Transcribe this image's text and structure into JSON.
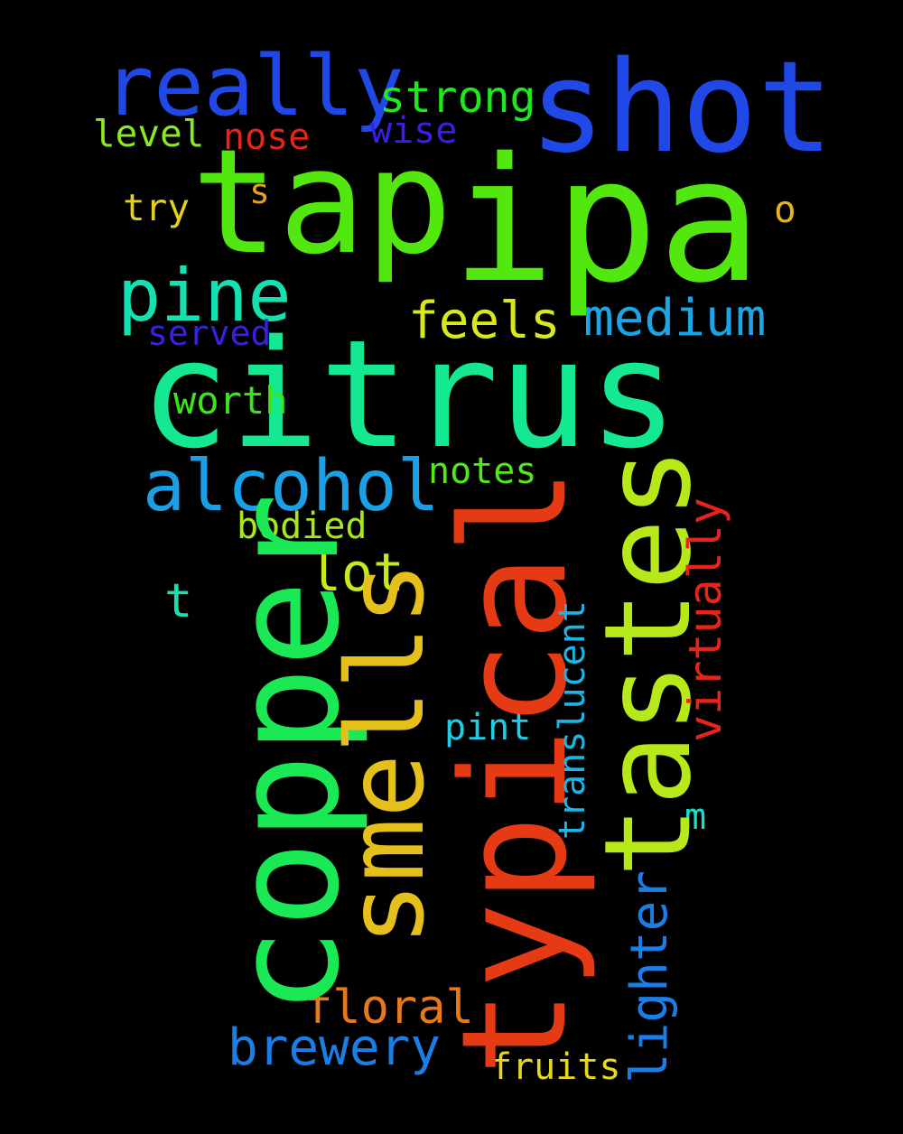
{
  "words": {
    "ipa": {
      "text": "ipa",
      "color": "#52e80f"
    },
    "tap": {
      "text": "tap",
      "color": "#52e80f"
    },
    "shot": {
      "text": "shot",
      "color": "#1f48e6"
    },
    "really": {
      "text": "really",
      "color": "#1f48e6"
    },
    "strong": {
      "text": "strong",
      "color": "#1fe81f"
    },
    "wise": {
      "text": "wise",
      "color": "#3a1fe6"
    },
    "level": {
      "text": "level",
      "color": "#8ce81f"
    },
    "nose": {
      "text": "nose",
      "color": "#e6241a"
    },
    "s": {
      "text": "s",
      "color": "#e6a21a"
    },
    "try": {
      "text": "try",
      "color": "#e6d01a"
    },
    "o": {
      "text": "o",
      "color": "#e6b41a"
    },
    "pine": {
      "text": "pine",
      "color": "#14e0b0"
    },
    "feels": {
      "text": "feels",
      "color": "#d8e81a"
    },
    "medium": {
      "text": "medium",
      "color": "#1aa6e6"
    },
    "served": {
      "text": "served",
      "color": "#3a1fe6"
    },
    "citrus": {
      "text": "citrus",
      "color": "#14e891"
    },
    "worth": {
      "text": "worth",
      "color": "#3ae81a"
    },
    "alcohol": {
      "text": "alcohol",
      "color": "#1aa0e6"
    },
    "notes": {
      "text": "notes",
      "color": "#52e81a"
    },
    "bodied": {
      "text": "bodied",
      "color": "#a6e81a"
    },
    "lot": {
      "text": "lot",
      "color": "#c8e81a"
    },
    "t": {
      "text": "t",
      "color": "#14e0b0"
    },
    "copper": {
      "text": "copper",
      "color": "#1ae854"
    },
    "smells": {
      "text": "smells",
      "color": "#e6c01a"
    },
    "typical": {
      "text": "typical",
      "color": "#e63a14"
    },
    "tastes": {
      "text": "tastes",
      "color": "#b6e81a"
    },
    "virtually": {
      "text": "virtually",
      "color": "#e6241a"
    },
    "translucent": {
      "text": "translucent",
      "color": "#1ab6e6"
    },
    "pint": {
      "text": "pint",
      "color": "#1ad0e6"
    },
    "m": {
      "text": "m",
      "color": "#14e0c8"
    },
    "lighter": {
      "text": "lighter",
      "color": "#1a7ee6"
    },
    "floral": {
      "text": "floral",
      "color": "#e67a1a"
    },
    "brewery": {
      "text": "brewery",
      "color": "#1a7ee6"
    },
    "fruits": {
      "text": "fruits",
      "color": "#e6d81a"
    }
  }
}
